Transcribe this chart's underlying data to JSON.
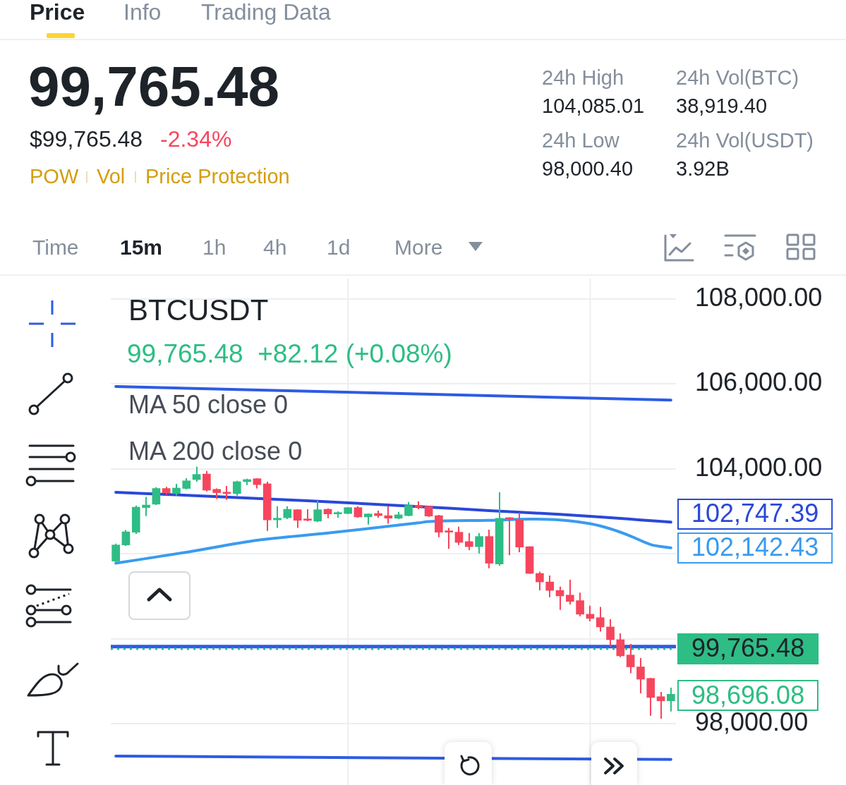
{
  "chart_data": {
    "type": "candlestick",
    "title": "BTCUSDT",
    "subtitle": "99,765.48  +82.12 (+0.08%)",
    "categories": [
      null,
      null,
      null,
      null,
      null,
      null,
      null,
      null,
      null,
      null,
      null,
      null,
      null,
      null,
      null,
      null,
      null,
      null,
      null,
      null,
      null,
      null,
      null,
      null,
      null,
      null,
      null,
      null,
      null,
      null,
      null,
      null,
      null,
      null,
      null,
      null,
      null,
      null,
      null,
      null,
      null,
      null,
      null,
      null,
      null,
      null,
      null,
      null,
      null,
      null,
      null,
      null,
      null,
      null,
      null,
      null
    ],
    "ohlc": [
      [
        101830,
        102240,
        101790,
        102210
      ],
      [
        102210,
        102560,
        102190,
        102520
      ],
      [
        102510,
        103140,
        102470,
        103100
      ],
      [
        103090,
        103340,
        102890,
        103150
      ],
      [
        103170,
        103570,
        103150,
        103540
      ],
      [
        103540,
        103580,
        103390,
        103440
      ],
      [
        103420,
        103650,
        103370,
        103550
      ],
      [
        103540,
        103780,
        103520,
        103720
      ],
      [
        103750,
        104050,
        103700,
        103870
      ],
      [
        103880,
        103950,
        103470,
        103500
      ],
      [
        103520,
        103540,
        103290,
        103440
      ],
      [
        103450,
        103600,
        103270,
        103420
      ],
      [
        103420,
        103720,
        103370,
        103700
      ],
      [
        103700,
        103770,
        103620,
        103750
      ],
      [
        103770,
        103780,
        103540,
        103630
      ],
      [
        103650,
        103700,
        102540,
        102800
      ],
      [
        102800,
        103120,
        102610,
        102840
      ],
      [
        102850,
        103120,
        102820,
        103050
      ],
      [
        103040,
        103050,
        102610,
        102790
      ],
      [
        102820,
        103050,
        102770,
        102790
      ],
      [
        102770,
        103250,
        102750,
        103040
      ],
      [
        103050,
        103070,
        102840,
        102940
      ],
      [
        102940,
        103000,
        102850,
        102970
      ],
      [
        102950,
        103100,
        102940,
        103090
      ],
      [
        103090,
        103120,
        102850,
        102870
      ],
      [
        102870,
        102950,
        102690,
        102940
      ],
      [
        102950,
        103020,
        102850,
        102900
      ],
      [
        102900,
        103120,
        102710,
        102840
      ],
      [
        102840,
        102990,
        102820,
        102920
      ],
      [
        102900,
        103220,
        102890,
        103140
      ],
      [
        103140,
        103240,
        103050,
        103100
      ],
      [
        103120,
        103130,
        102870,
        102890
      ],
      [
        102900,
        102920,
        102390,
        102510
      ],
      [
        102540,
        102610,
        102120,
        102510
      ],
      [
        102510,
        102640,
        102210,
        102270
      ],
      [
        102290,
        102490,
        102090,
        102170
      ],
      [
        102170,
        102490,
        102010,
        102410
      ],
      [
        102410,
        102570,
        101660,
        101780
      ],
      [
        101760,
        103450,
        101720,
        102840
      ],
      [
        102850,
        102860,
        101970,
        102820
      ],
      [
        102800,
        102970,
        102040,
        102160
      ],
      [
        102170,
        102180,
        101530,
        101540
      ],
      [
        101540,
        101580,
        101140,
        101340
      ],
      [
        101340,
        101490,
        100980,
        101140
      ],
      [
        101140,
        101230,
        100680,
        101010
      ],
      [
        101030,
        101390,
        100810,
        100880
      ],
      [
        100900,
        101090,
        100530,
        100580
      ],
      [
        100580,
        100780,
        100410,
        100480
      ],
      [
        100500,
        100750,
        100170,
        100280
      ],
      [
        100280,
        100460,
        99820,
        99980
      ],
      [
        99980,
        100130,
        99570,
        99600
      ],
      [
        99620,
        99880,
        99190,
        99340
      ],
      [
        99340,
        99550,
        98720,
        99050
      ],
      [
        99070,
        99080,
        98190,
        98620
      ],
      [
        98640,
        98750,
        98120,
        98540
      ],
      [
        98540,
        98850,
        98290,
        98696.08
      ]
    ],
    "colors": [
      "#2ebd85",
      "#2ebd85",
      "#2ebd85",
      "#2ebd85",
      "#2ebd85",
      "#f6465d",
      "#2ebd85",
      "#2ebd85",
      "#2ebd85",
      "#f6465d",
      "#f6465d",
      "#f6465d",
      "#2ebd85",
      "#2ebd85",
      "#f6465d",
      "#f6465d",
      "#2ebd85",
      "#2ebd85",
      "#f6465d",
      "#f6465d",
      "#2ebd85",
      "#f6465d",
      "#2ebd85",
      "#2ebd85",
      "#f6465d",
      "#2ebd85",
      "#f6465d",
      "#f6465d",
      "#2ebd85",
      "#2ebd85",
      "#f6465d",
      "#f6465d",
      "#f6465d",
      "#f6465d",
      "#f6465d",
      "#f6465d",
      "#2ebd85",
      "#f6465d",
      "#2ebd85",
      "#f6465d",
      "#f6465d",
      "#f6465d",
      "#f6465d",
      "#f6465d",
      "#f6465d",
      "#f6465d",
      "#f6465d",
      "#f6465d",
      "#f6465d",
      "#f6465d",
      "#f6465d",
      "#f6465d",
      "#f6465d",
      "#f6465d",
      "#f6465d",
      "#2ebd85"
    ],
    "series": [
      {
        "type": "line",
        "color": "#2a48d8",
        "values": [
          103450,
          null,
          null,
          null,
          null,
          null,
          null,
          null,
          null,
          103360,
          null,
          null,
          null,
          null,
          null,
          null,
          null,
          null,
          null,
          103250,
          null,
          null,
          null,
          null,
          null,
          null,
          null,
          null,
          103140,
          null,
          null,
          null,
          null,
          null,
          null,
          null,
          null,
          103020,
          null,
          null,
          null,
          null,
          null,
          null,
          102930,
          null,
          null,
          null,
          102870,
          null,
          null,
          null,
          102800,
          null,
          null,
          102747.39
        ],
        "value_labels": [
          null,
          null,
          null,
          null,
          null,
          null,
          null,
          null,
          null,
          null,
          null,
          null,
          null,
          null,
          null,
          null,
          null,
          null,
          null,
          null,
          null,
          null,
          null,
          null,
          null,
          null,
          null,
          null,
          null,
          null,
          null,
          null,
          null,
          null,
          null,
          null,
          null,
          null,
          null,
          null,
          null,
          null,
          null,
          null,
          null,
          null,
          null,
          null,
          null,
          null,
          null,
          null,
          null,
          null,
          null,
          "102,747.39"
        ]
      },
      {
        "type": "line",
        "color": "#3a9bf0",
        "values": [
          101780,
          null,
          null,
          null,
          null,
          null,
          null,
          102040,
          null,
          null,
          null,
          null,
          null,
          null,
          102320,
          null,
          null,
          null,
          null,
          null,
          null,
          102490,
          null,
          null,
          null,
          null,
          null,
          null,
          null,
          null,
          102730,
          102760,
          null,
          null,
          null,
          null,
          null,
          102790,
          null,
          null,
          null,
          102820,
          null,
          null,
          102800,
          null,
          null,
          102710,
          null,
          102590,
          null,
          102420,
          null,
          102220,
          null,
          102142.43
        ],
        "value_labels": [
          null,
          null,
          null,
          null,
          null,
          null,
          null,
          null,
          null,
          null,
          null,
          null,
          null,
          null,
          null,
          null,
          null,
          null,
          null,
          null,
          null,
          null,
          null,
          null,
          null,
          null,
          null,
          null,
          null,
          null,
          null,
          null,
          null,
          null,
          null,
          null,
          null,
          null,
          null,
          null,
          null,
          null,
          null,
          null,
          null,
          null,
          null,
          null,
          null,
          null,
          null,
          null,
          null,
          null,
          null,
          "102,142.43"
        ]
      },
      {
        "type": "line",
        "color": "#2d5be3",
        "values": [
          105940,
          null,
          null,
          null,
          null,
          null,
          null,
          null,
          null,
          null,
          null,
          null,
          null,
          null,
          null,
          null,
          null,
          null,
          null,
          null,
          null,
          null,
          null,
          null,
          null,
          null,
          null,
          null,
          null,
          null,
          null,
          null,
          null,
          null,
          null,
          null,
          null,
          null,
          null,
          null,
          null,
          null,
          null,
          null,
          null,
          null,
          null,
          null,
          null,
          null,
          null,
          null,
          null,
          null,
          null,
          105620
        ]
      },
      {
        "type": "line",
        "color": "#2d5be3",
        "values": [
          97240,
          null,
          null,
          null,
          null,
          null,
          null,
          null,
          null,
          null,
          null,
          null,
          null,
          null,
          null,
          null,
          null,
          null,
          null,
          null,
          null,
          null,
          null,
          null,
          null,
          null,
          null,
          null,
          null,
          null,
          null,
          null,
          null,
          null,
          null,
          null,
          null,
          null,
          null,
          null,
          null,
          null,
          null,
          null,
          null,
          null,
          null,
          null,
          null,
          null,
          null,
          null,
          null,
          null,
          null,
          97160
        ]
      }
    ],
    "ylim": [
      96560,
      108480
    ],
    "yticks": [
      {
        "value": 108000,
        "label": "108,000.00"
      },
      {
        "value": 106000,
        "label": "106,000.00"
      },
      {
        "value": 104000,
        "label": "104,000.00"
      },
      {
        "value": 102000,
        "label": null
      },
      {
        "value": 100000,
        "label": null
      },
      {
        "value": 98000,
        "label": "98,000.00"
      }
    ],
    "tick_labels": "y",
    "grid": true,
    "ref_lines": [
      {
        "axis": "y",
        "value": 99820,
        "color": "#2d5be3",
        "line_style": "solid"
      },
      {
        "axis": "y",
        "value": 99765.48,
        "label": "99,765.48",
        "color": "#2ebd85",
        "line_style": "dotted"
      }
    ],
    "annotations": [
      "Price",
      "Info",
      "Trading Data",
      "99,765.48",
      "$99,765.48",
      "-2.34%",
      "POW",
      "Vol",
      "Price Protection",
      "24h High",
      "104,085.01",
      "24h Vol(BTC)",
      "38,919.40",
      "24h Low",
      "98,000.40",
      "24h Vol(USDT)",
      "3.92B",
      "Time",
      "15m",
      "1h",
      "4h",
      "1d",
      "More",
      "MA 50 close 0",
      "MA 200 close 0",
      "98,696.08"
    ]
  }
}
